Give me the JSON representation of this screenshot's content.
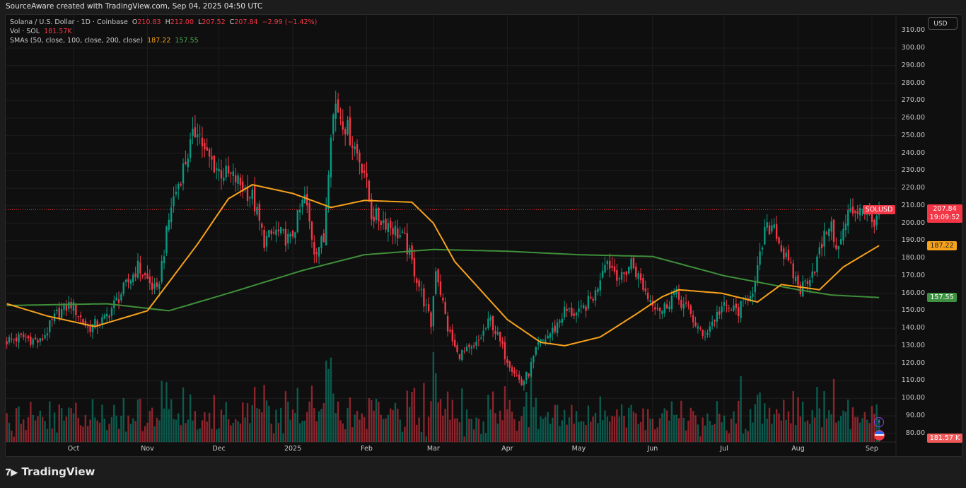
{
  "header": {
    "attribution": "SourceAware created with TradingView.com, Sep 04, 2025 04:50 UTC"
  },
  "legend": {
    "symbol": "Solana / U.S. Dollar · 1D · Coinbase",
    "o_label": "O",
    "o": "210.83",
    "h_label": "H",
    "h": "212.00",
    "l_label": "L",
    "l": "207.52",
    "c_label": "C",
    "c": "207.84",
    "change": "−2.99 (−1.42%)",
    "vol_label": "Vol · SOL",
    "vol": "181.57K",
    "sma_label": "SMAs (50, close, 100, close, 200, close)",
    "sma50": "187.22",
    "sma200": "157.55"
  },
  "currency_button": "USD",
  "axis_pills": {
    "symbol": "SOLUSD",
    "price": "207.84",
    "countdown": "19:09:52",
    "sma50": "187.22",
    "sma200": "157.55",
    "volume": "181.57 K"
  },
  "footer": {
    "brand": "TradingView"
  },
  "colors": {
    "up": "#089981",
    "down": "#f23645",
    "sma50": "#f7a21b",
    "sma200": "#3f8f3a"
  },
  "chart_data": {
    "type": "candlestick",
    "title": "Solana / U.S. Dollar · 1D · Coinbase",
    "ylim": [
      80,
      310
    ],
    "yticks": [
      "80.00",
      "90.00",
      "100.00",
      "110.00",
      "120.00",
      "130.00",
      "140.00",
      "150.00",
      "160.00",
      "170.00",
      "180.00",
      "190.00",
      "200.00",
      "210.00",
      "220.00",
      "230.00",
      "240.00",
      "250.00",
      "260.00",
      "270.00",
      "280.00",
      "290.00",
      "300.00",
      "310.00"
    ],
    "xticks": [
      {
        "label": "Oct",
        "date": "2024-10-01"
      },
      {
        "label": "Nov",
        "date": "2024-11-01"
      },
      {
        "label": "Dec",
        "date": "2024-12-01"
      },
      {
        "label": "2025",
        "date": "2025-01-01"
      },
      {
        "label": "Feb",
        "date": "2025-02-01"
      },
      {
        "label": "Mar",
        "date": "2025-03-01"
      },
      {
        "label": "Apr",
        "date": "2025-04-01"
      },
      {
        "label": "May",
        "date": "2025-05-01"
      },
      {
        "label": "Jun",
        "date": "2025-06-01"
      },
      {
        "label": "Jul",
        "date": "2025-07-01"
      },
      {
        "label": "Aug",
        "date": "2025-08-01"
      },
      {
        "label": "Sep",
        "date": "2025-09-01"
      }
    ],
    "close_anchors": [
      [
        "2024-09-03",
        133
      ],
      [
        "2024-09-10",
        135
      ],
      [
        "2024-09-17",
        132
      ],
      [
        "2024-09-24",
        148
      ],
      [
        "2024-09-30",
        154
      ],
      [
        "2024-10-07",
        140
      ],
      [
        "2024-10-14",
        145
      ],
      [
        "2024-10-21",
        160
      ],
      [
        "2024-10-28",
        175
      ],
      [
        "2024-11-05",
        160
      ],
      [
        "2024-11-11",
        210
      ],
      [
        "2024-11-18",
        240
      ],
      [
        "2024-11-22",
        256
      ],
      [
        "2024-11-25",
        240
      ],
      [
        "2024-12-01",
        230
      ],
      [
        "2024-12-08",
        225
      ],
      [
        "2024-12-15",
        215
      ],
      [
        "2024-12-20",
        190
      ],
      [
        "2024-12-25",
        195
      ],
      [
        "2024-12-31",
        190
      ],
      [
        "2025-01-06",
        215
      ],
      [
        "2025-01-10",
        185
      ],
      [
        "2025-01-14",
        190
      ],
      [
        "2025-01-17",
        255
      ],
      [
        "2025-01-19",
        268
      ],
      [
        "2025-01-25",
        250
      ],
      [
        "2025-01-31",
        230
      ],
      [
        "2025-02-03",
        205
      ],
      [
        "2025-02-10",
        200
      ],
      [
        "2025-02-17",
        190
      ],
      [
        "2025-02-24",
        160
      ],
      [
        "2025-02-28",
        142
      ],
      [
        "2025-03-02",
        175
      ],
      [
        "2025-03-07",
        140
      ],
      [
        "2025-03-11",
        125
      ],
      [
        "2025-03-18",
        128
      ],
      [
        "2025-03-25",
        145
      ],
      [
        "2025-03-31",
        125
      ],
      [
        "2025-04-07",
        108
      ],
      [
        "2025-04-10",
        115
      ],
      [
        "2025-04-14",
        130
      ],
      [
        "2025-04-21",
        140
      ],
      [
        "2025-04-25",
        150
      ],
      [
        "2025-05-01",
        148
      ],
      [
        "2025-05-08",
        160
      ],
      [
        "2025-05-12",
        180
      ],
      [
        "2025-05-19",
        168
      ],
      [
        "2025-05-23",
        178
      ],
      [
        "2025-05-30",
        158
      ],
      [
        "2025-06-05",
        150
      ],
      [
        "2025-06-10",
        160
      ],
      [
        "2025-06-16",
        150
      ],
      [
        "2025-06-22",
        135
      ],
      [
        "2025-06-30",
        152
      ],
      [
        "2025-07-07",
        150
      ],
      [
        "2025-07-14",
        165
      ],
      [
        "2025-07-18",
        195
      ],
      [
        "2025-07-22",
        200
      ],
      [
        "2025-07-25",
        185
      ],
      [
        "2025-08-02",
        162
      ],
      [
        "2025-08-08",
        175
      ],
      [
        "2025-08-14",
        200
      ],
      [
        "2025-08-18",
        185
      ],
      [
        "2025-08-22",
        205
      ],
      [
        "2025-08-28",
        210
      ],
      [
        "2025-09-01",
        200
      ],
      [
        "2025-09-04",
        207.84
      ]
    ],
    "sma50_anchors": [
      [
        "2024-09-03",
        154
      ],
      [
        "2024-09-20",
        147
      ],
      [
        "2024-10-10",
        141
      ],
      [
        "2024-11-01",
        150
      ],
      [
        "2024-11-22",
        188
      ],
      [
        "2024-12-05",
        214
      ],
      [
        "2024-12-15",
        222
      ],
      [
        "2025-01-01",
        217
      ],
      [
        "2025-01-17",
        209
      ],
      [
        "2025-01-31",
        213
      ],
      [
        "2025-02-20",
        212
      ],
      [
        "2025-03-01",
        200
      ],
      [
        "2025-03-10",
        178
      ],
      [
        "2025-04-01",
        145
      ],
      [
        "2025-04-15",
        132
      ],
      [
        "2025-04-25",
        130
      ],
      [
        "2025-05-10",
        135
      ],
      [
        "2025-05-25",
        148
      ],
      [
        "2025-06-05",
        158
      ],
      [
        "2025-06-12",
        162
      ],
      [
        "2025-06-30",
        160
      ],
      [
        "2025-07-15",
        155
      ],
      [
        "2025-07-25",
        165
      ],
      [
        "2025-08-10",
        162
      ],
      [
        "2025-08-20",
        175
      ],
      [
        "2025-09-04",
        187.22
      ]
    ],
    "sma200_anchors": [
      [
        "2024-09-03",
        153
      ],
      [
        "2024-10-15",
        154
      ],
      [
        "2024-11-10",
        150
      ],
      [
        "2024-12-05",
        160
      ],
      [
        "2025-01-05",
        173
      ],
      [
        "2025-01-31",
        182
      ],
      [
        "2025-03-01",
        185
      ],
      [
        "2025-04-01",
        184
      ],
      [
        "2025-05-01",
        182
      ],
      [
        "2025-06-01",
        181
      ],
      [
        "2025-07-01",
        170
      ],
      [
        "2025-08-01",
        162
      ],
      [
        "2025-08-15",
        159
      ],
      [
        "2025-09-04",
        157.55
      ]
    ],
    "last_price": 207.84,
    "last_volume": "181.57K"
  }
}
